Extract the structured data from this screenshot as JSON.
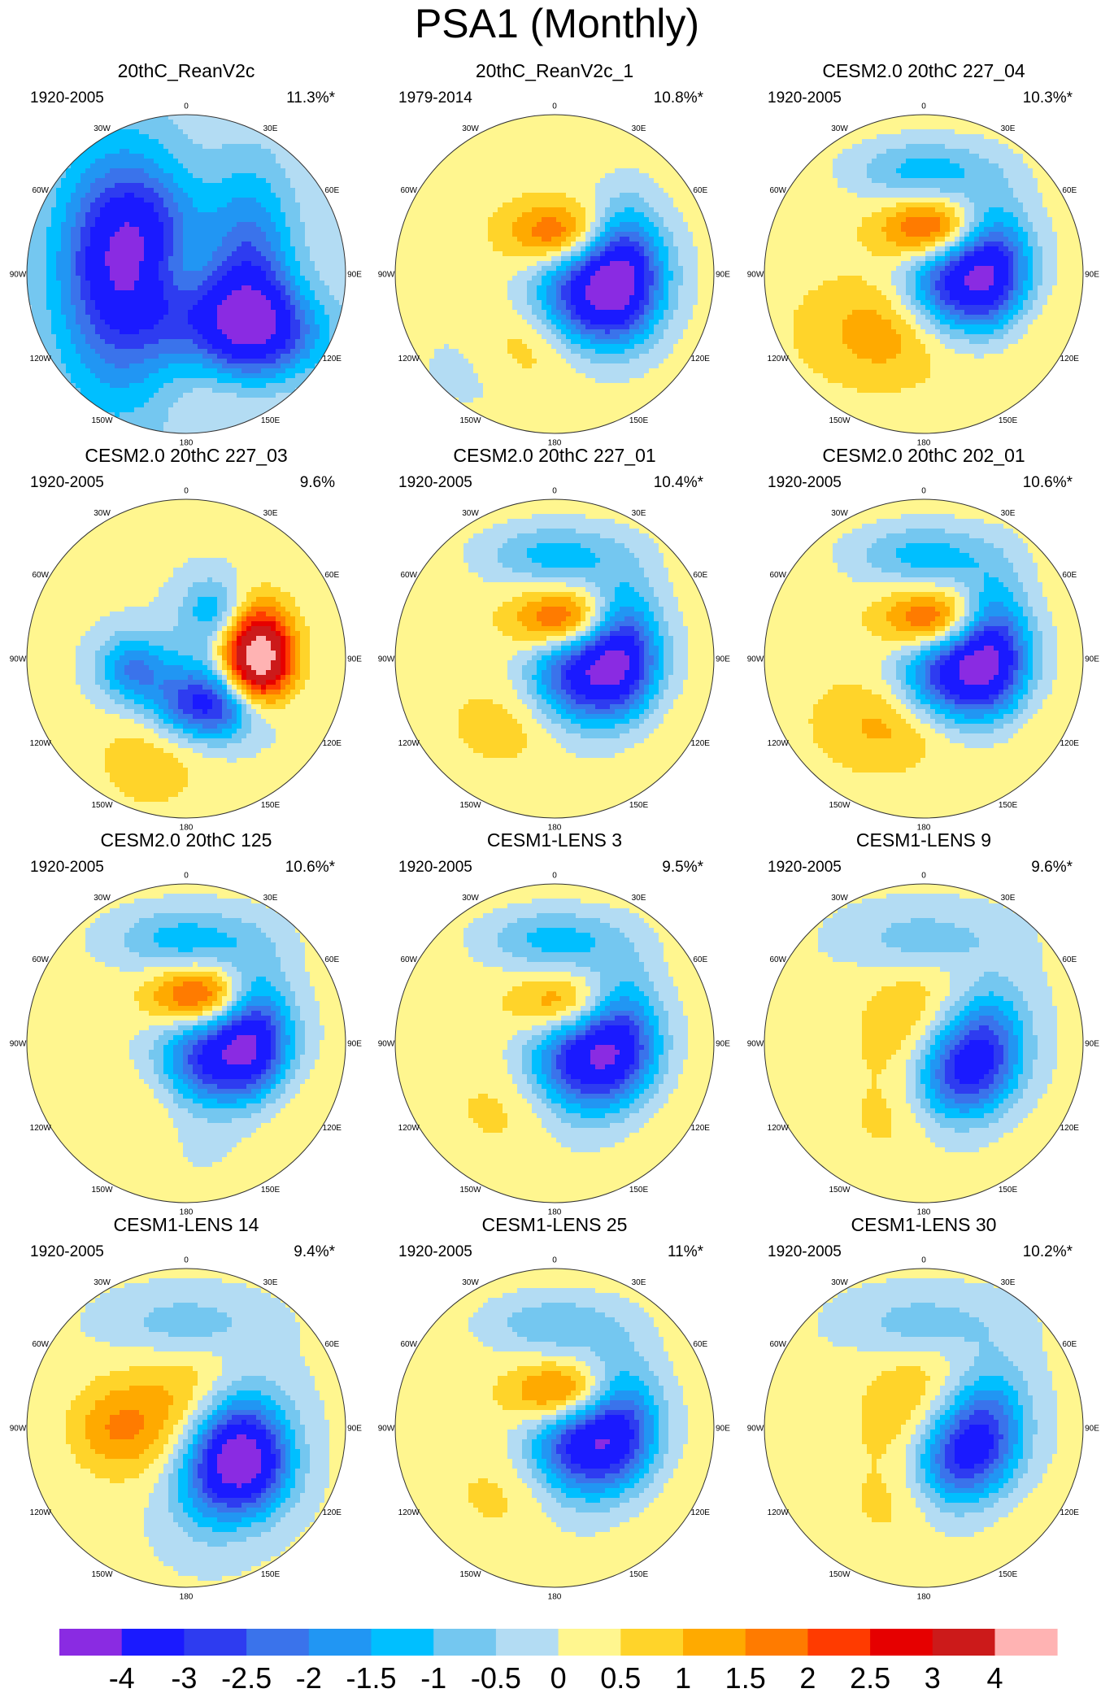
{
  "chart_data": {
    "type": "filled-contour-map",
    "title": "PSA1 (Monthly)",
    "projection": "south polar stereographic",
    "longitude_labels": [
      "0",
      "30E",
      "60E",
      "90E",
      "120E",
      "150E",
      "180",
      "150W",
      "120W",
      "90W",
      "60W",
      "30W"
    ],
    "colorbar": {
      "tick_labels": [
        "-4",
        "-3",
        "-2.5",
        "-2",
        "-1.5",
        "-1",
        "-0.5",
        "0",
        "0.5",
        "1",
        "1.5",
        "2",
        "2.5",
        "3",
        "4"
      ],
      "colors": [
        "#8a2be2",
        "#1a1aff",
        "#2e3cf0",
        "#3a73eb",
        "#2196f3",
        "#00bfff",
        "#74c7f0",
        "#b3dcf3",
        "#fff68f",
        "#ffd42a",
        "#ffaa00",
        "#ff7b00",
        "#ff3b00",
        "#e60000",
        "#cc1a1a",
        "#ffb3b3"
      ]
    },
    "panels": [
      {
        "title": "20thC_ReanV2c",
        "period": "1920-2005",
        "variance": "11.3%*",
        "background": 0,
        "features": [
          {
            "lon": 270,
            "r": 0.42,
            "sx": 0.3,
            "sy": 0.6,
            "rot": 0,
            "v": -3
          },
          {
            "lon": 130,
            "r": 0.5,
            "sx": 0.35,
            "sy": 0.2,
            "rot": 10,
            "v": -3
          },
          {
            "lon": 90,
            "r": 0.4,
            "sx": 0.2,
            "sy": 0.45,
            "rot": 0,
            "v": -2.5
          },
          {
            "lon": 300,
            "r": 0.3,
            "sx": 0.25,
            "sy": 0.3,
            "rot": 0,
            "v": -2
          },
          {
            "lon": 280,
            "r": 0.1,
            "sx": 0.2,
            "sy": 0.2,
            "rot": 0,
            "v": 1.2
          },
          {
            "lon": 160,
            "r": 0.85,
            "sx": 0.3,
            "sy": 0.12,
            "rot": 0,
            "v": 0.4
          }
        ]
      },
      {
        "title": "20thC_ReanV2c_1",
        "period": "1979-2014",
        "variance": "10.8%*",
        "background": 0.3,
        "features": [
          {
            "lon": 115,
            "r": 0.3,
            "sx": 0.25,
            "sy": 0.3,
            "rot": 40,
            "v": -4.5
          },
          {
            "lon": 80,
            "r": 0.45,
            "sx": 0.15,
            "sy": 0.3,
            "rot": 0,
            "v": -1.5
          },
          {
            "lon": 10,
            "r": 0.25,
            "sx": 0.22,
            "sy": 0.14,
            "rot": 0,
            "v": 2.2
          },
          {
            "lon": 190,
            "r": 0.45,
            "sx": 0.3,
            "sy": 0.2,
            "rot": 0,
            "v": 1.5
          },
          {
            "lon": 220,
            "r": 0.7,
            "sx": 0.3,
            "sy": 0.25,
            "rot": 0,
            "v": -0.7
          }
        ]
      },
      {
        "title": "CESM2.0 20thC 227_04",
        "period": "1920-2005",
        "variance": "10.3%*",
        "background": 0.3,
        "features": [
          {
            "lon": 110,
            "r": 0.25,
            "sx": 0.25,
            "sy": 0.3,
            "rot": 30,
            "v": -4.5
          },
          {
            "lon": 85,
            "r": 0.45,
            "sx": 0.15,
            "sy": 0.3,
            "rot": 0,
            "v": -1.5
          },
          {
            "lon": 15,
            "r": 0.28,
            "sx": 0.22,
            "sy": 0.14,
            "rot": 0,
            "v": 2.8
          },
          {
            "lon": 175,
            "r": 0.35,
            "sx": 0.4,
            "sy": 0.22,
            "rot": 0,
            "v": 2.0
          },
          {
            "lon": 0,
            "r": 0.65,
            "sx": 0.32,
            "sy": 0.14,
            "rot": 0,
            "v": -1.5
          }
        ]
      },
      {
        "title": "CESM2.0 20thC 227_03",
        "period": "1920-2005",
        "variance": "9.6%",
        "background": 0.1,
        "features": [
          {
            "lon": 90,
            "r": 0.45,
            "sx": 0.15,
            "sy": 0.22,
            "rot": 0,
            "v": 5.0
          },
          {
            "lon": 150,
            "r": 0.35,
            "sx": 0.25,
            "sy": 0.15,
            "rot": 0,
            "v": -3.0
          },
          {
            "lon": 260,
            "r": 0.35,
            "sx": 0.15,
            "sy": 0.15,
            "rot": 0,
            "v": -2.0
          },
          {
            "lon": 30,
            "r": 0.35,
            "sx": 0.15,
            "sy": 0.15,
            "rot": 0,
            "v": -1.5
          },
          {
            "lon": 200,
            "r": 0.65,
            "sx": 0.25,
            "sy": 0.25,
            "rot": 0,
            "v": 0.8
          },
          {
            "lon": 180,
            "r": 0.15,
            "sx": 0.2,
            "sy": 0.2,
            "rot": 0,
            "v": -1.0
          }
        ]
      },
      {
        "title": "CESM2.0 20thC 227_01",
        "period": "1920-2005",
        "variance": "10.4%*",
        "background": 0.3,
        "features": [
          {
            "lon": 120,
            "r": 0.25,
            "sx": 0.25,
            "sy": 0.3,
            "rot": 30,
            "v": -4.5
          },
          {
            "lon": 80,
            "r": 0.45,
            "sx": 0.15,
            "sy": 0.3,
            "rot": 0,
            "v": -1.8
          },
          {
            "lon": 20,
            "r": 0.25,
            "sx": 0.22,
            "sy": 0.14,
            "rot": 0,
            "v": 2.8
          },
          {
            "lon": 170,
            "r": 0.4,
            "sx": 0.35,
            "sy": 0.2,
            "rot": 0,
            "v": 1.5
          },
          {
            "lon": 0,
            "r": 0.65,
            "sx": 0.32,
            "sy": 0.14,
            "rot": 0,
            "v": -1.5
          }
        ]
      },
      {
        "title": "CESM2.0 20thC 202_01",
        "period": "1920-2005",
        "variance": "10.6%*",
        "background": 0.3,
        "features": [
          {
            "lon": 120,
            "r": 0.25,
            "sx": 0.25,
            "sy": 0.3,
            "rot": 30,
            "v": -4.5
          },
          {
            "lon": 80,
            "r": 0.45,
            "sx": 0.15,
            "sy": 0.3,
            "rot": 0,
            "v": -2.0
          },
          {
            "lon": 20,
            "r": 0.25,
            "sx": 0.22,
            "sy": 0.14,
            "rot": 0,
            "v": 2.8
          },
          {
            "lon": 175,
            "r": 0.4,
            "sx": 0.35,
            "sy": 0.2,
            "rot": 0,
            "v": 2.0
          },
          {
            "lon": 0,
            "r": 0.65,
            "sx": 0.32,
            "sy": 0.14,
            "rot": 0,
            "v": -1.5
          }
        ]
      },
      {
        "title": "CESM2.0 20thC 125",
        "period": "1920-2005",
        "variance": "10.6%*",
        "background": 0.2,
        "features": [
          {
            "lon": 130,
            "r": 0.25,
            "sx": 0.25,
            "sy": 0.3,
            "rot": 30,
            "v": -4.5
          },
          {
            "lon": 80,
            "r": 0.45,
            "sx": 0.15,
            "sy": 0.3,
            "rot": 0,
            "v": -2.0
          },
          {
            "lon": 20,
            "r": 0.3,
            "sx": 0.22,
            "sy": 0.14,
            "rot": 0,
            "v": 2.8
          },
          {
            "lon": 160,
            "r": 0.4,
            "sx": 0.35,
            "sy": 0.2,
            "rot": 0,
            "v": 2.0
          },
          {
            "lon": 0,
            "r": 0.65,
            "sx": 0.32,
            "sy": 0.14,
            "rot": 0,
            "v": -1.5
          }
        ]
      },
      {
        "title": "CESM1-LENS 3",
        "period": "1920-2005",
        "variance": "9.5%*",
        "background": 0.3,
        "features": [
          {
            "lon": 120,
            "r": 0.25,
            "sx": 0.25,
            "sy": 0.3,
            "rot": 30,
            "v": -4.5
          },
          {
            "lon": 80,
            "r": 0.45,
            "sx": 0.15,
            "sy": 0.3,
            "rot": 0,
            "v": -1.2
          },
          {
            "lon": 20,
            "r": 0.25,
            "sx": 0.22,
            "sy": 0.14,
            "rot": 0,
            "v": 2.0
          },
          {
            "lon": 170,
            "r": 0.4,
            "sx": 0.35,
            "sy": 0.2,
            "rot": 0,
            "v": 1.2
          },
          {
            "lon": 0,
            "r": 0.65,
            "sx": 0.32,
            "sy": 0.14,
            "rot": 0,
            "v": -1.5
          }
        ]
      },
      {
        "title": "CESM1-LENS 9",
        "period": "1920-2005",
        "variance": "9.6%*",
        "background": 0.1,
        "features": [
          {
            "lon": 120,
            "r": 0.28,
            "sx": 0.22,
            "sy": 0.3,
            "rot": 20,
            "v": -4.5
          },
          {
            "lon": 60,
            "r": 0.1,
            "sx": 0.3,
            "sy": 0.3,
            "rot": 0,
            "v": 1.6
          },
          {
            "lon": 90,
            "r": 0.45,
            "sx": 0.15,
            "sy": 0.3,
            "rot": 0,
            "v": -0.8
          },
          {
            "lon": 170,
            "r": 0.5,
            "sx": 0.35,
            "sy": 0.2,
            "rot": 0,
            "v": 1.0
          },
          {
            "lon": 0,
            "r": 0.65,
            "sx": 0.32,
            "sy": 0.14,
            "rot": 0,
            "v": -1.0
          }
        ]
      },
      {
        "title": "CESM1-LENS 14",
        "period": "1920-2005",
        "variance": "9.4%*",
        "background": 0.1,
        "features": [
          {
            "lon": 120,
            "r": 0.3,
            "sx": 0.22,
            "sy": 0.3,
            "rot": 20,
            "v": -4.5
          },
          {
            "lon": 60,
            "r": 0.1,
            "sx": 0.3,
            "sy": 0.3,
            "rot": 0,
            "v": 1.6
          },
          {
            "lon": 120,
            "r": 0.5,
            "sx": 0.18,
            "sy": 0.2,
            "rot": 0,
            "v": -2.0
          },
          {
            "lon": 270,
            "r": 0.45,
            "sx": 0.2,
            "sy": 0.2,
            "rot": 0,
            "v": 1.2
          },
          {
            "lon": 0,
            "r": 0.65,
            "sx": 0.32,
            "sy": 0.14,
            "rot": 0,
            "v": -1.0
          }
        ]
      },
      {
        "title": "CESM1-LENS 25",
        "period": "1920-2005",
        "variance": "11%*",
        "background": 0.3,
        "features": [
          {
            "lon": 120,
            "r": 0.25,
            "sx": 0.25,
            "sy": 0.3,
            "rot": 30,
            "v": -4.5
          },
          {
            "lon": 80,
            "r": 0.45,
            "sx": 0.15,
            "sy": 0.3,
            "rot": 0,
            "v": -1.0
          },
          {
            "lon": 20,
            "r": 0.22,
            "sx": 0.22,
            "sy": 0.14,
            "rot": 0,
            "v": 2.6
          },
          {
            "lon": 170,
            "r": 0.4,
            "sx": 0.35,
            "sy": 0.2,
            "rot": 0,
            "v": 1.2
          },
          {
            "lon": 0,
            "r": 0.65,
            "sx": 0.32,
            "sy": 0.14,
            "rot": 0,
            "v": -1.2
          }
        ]
      },
      {
        "title": "CESM1-LENS 30",
        "period": "1920-2005",
        "variance": "10.2%*",
        "background": 0.1,
        "features": [
          {
            "lon": 120,
            "r": 0.28,
            "sx": 0.22,
            "sy": 0.3,
            "rot": 20,
            "v": -4.5
          },
          {
            "lon": 60,
            "r": 0.1,
            "sx": 0.3,
            "sy": 0.3,
            "rot": 0,
            "v": 1.6
          },
          {
            "lon": 80,
            "r": 0.45,
            "sx": 0.15,
            "sy": 0.3,
            "rot": 0,
            "v": -0.8
          },
          {
            "lon": 170,
            "r": 0.5,
            "sx": 0.35,
            "sy": 0.2,
            "rot": 0,
            "v": 1.0
          },
          {
            "lon": 0,
            "r": 0.65,
            "sx": 0.32,
            "sy": 0.14,
            "rot": 0,
            "v": -1.0
          }
        ]
      }
    ]
  }
}
